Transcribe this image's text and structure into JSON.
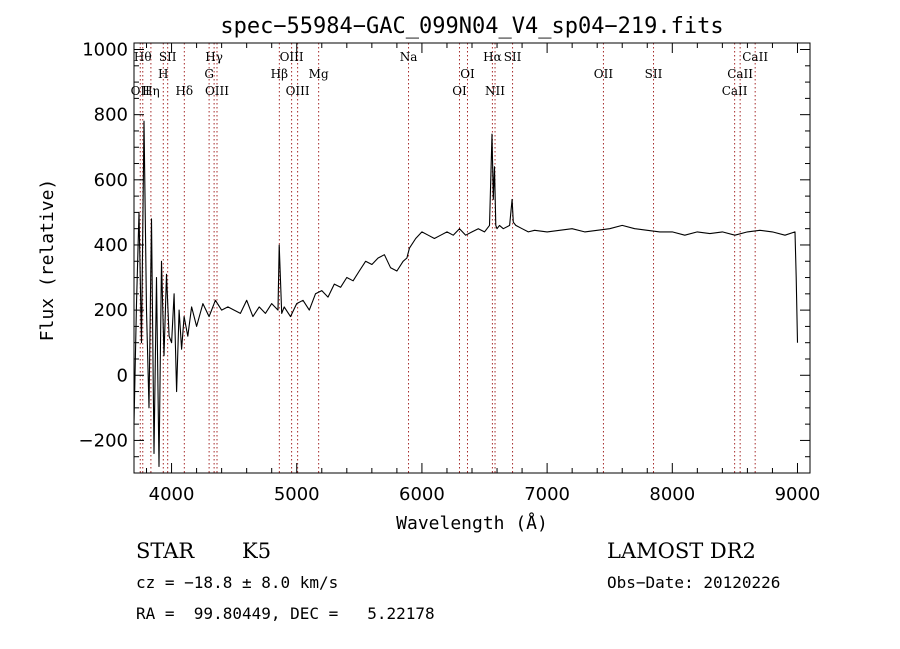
{
  "chart_data": {
    "type": "line",
    "title": "spec−55984−GAC_099N04_V4_sp04−219.fits",
    "xlabel": "Wavelength (Å)",
    "ylabel": "Flux (relative)",
    "xlim": [
      3700,
      9100
    ],
    "ylim": [
      -300,
      1020
    ],
    "xticks": [
      4000,
      5000,
      6000,
      7000,
      8000,
      9000
    ],
    "yticks": [
      -200,
      0,
      200,
      400,
      600,
      800,
      1000
    ],
    "ytick_labels": [
      "−200",
      "0",
      "200",
      "400",
      "600",
      "800",
      "1000"
    ],
    "grid": false,
    "series": [
      {
        "x": [
          3700,
          3720,
          3740,
          3760,
          3780,
          3800,
          3820,
          3840,
          3860,
          3880,
          3900,
          3920,
          3940,
          3960,
          3980,
          4000,
          4020,
          4040,
          4060,
          4080,
          4100,
          4130,
          4160,
          4200,
          4250,
          4300,
          4350,
          4400,
          4450,
          4500,
          4550,
          4600,
          4650,
          4700,
          4750,
          4800,
          4850,
          4860,
          4880,
          4900,
          4950,
          5000,
          5050,
          5100,
          5150,
          5200,
          5250,
          5300,
          5350,
          5400,
          5450,
          5500,
          5550,
          5600,
          5650,
          5700,
          5750,
          5800,
          5850,
          5880,
          5900,
          5950,
          6000,
          6050,
          6100,
          6150,
          6200,
          6250,
          6300,
          6350,
          6400,
          6450,
          6500,
          6540,
          6560,
          6570,
          6580,
          6590,
          6600,
          6620,
          6650,
          6700,
          6720,
          6730,
          6750,
          6800,
          6850,
          6900,
          7000,
          7100,
          7200,
          7300,
          7400,
          7500,
          7600,
          7700,
          7800,
          7900,
          8000,
          8100,
          8200,
          8300,
          8400,
          8500,
          8600,
          8700,
          8800,
          8900,
          8980,
          8990,
          9000
        ],
        "y": [
          -150,
          220,
          500,
          100,
          780,
          200,
          -100,
          480,
          -240,
          300,
          -280,
          350,
          60,
          310,
          120,
          100,
          250,
          -50,
          200,
          80,
          180,
          120,
          210,
          150,
          220,
          180,
          230,
          200,
          210,
          200,
          190,
          230,
          180,
          210,
          190,
          220,
          200,
          400,
          190,
          210,
          180,
          220,
          230,
          200,
          250,
          260,
          240,
          280,
          270,
          300,
          290,
          320,
          350,
          340,
          360,
          370,
          330,
          320,
          350,
          360,
          390,
          420,
          440,
          430,
          420,
          430,
          440,
          430,
          450,
          430,
          440,
          450,
          440,
          460,
          740,
          540,
          640,
          460,
          450,
          460,
          450,
          460,
          540,
          470,
          460,
          450,
          440,
          445,
          440,
          445,
          450,
          440,
          445,
          450,
          460,
          450,
          445,
          440,
          440,
          430,
          440,
          435,
          440,
          430,
          440,
          445,
          440,
          430,
          440,
          300,
          100
        ]
      }
    ],
    "lines": [
      {
        "wave": 3750,
        "label": "OII",
        "row": 3
      },
      {
        "wave": 3770,
        "label": "Hθ",
        "row": 0
      },
      {
        "wave": 3835,
        "label": "Hη",
        "row": 3
      },
      {
        "wave": 3934,
        "label": "H",
        "row": 1
      },
      {
        "wave": 3969,
        "label": "SII",
        "row": 0
      },
      {
        "wave": 4102,
        "label": "Hδ",
        "row": 3
      },
      {
        "wave": 4300,
        "label": "G",
        "row": 1
      },
      {
        "wave": 4340,
        "label": "Hγ",
        "row": 0
      },
      {
        "wave": 4363,
        "label": "OIII",
        "row": 3
      },
      {
        "wave": 4861,
        "label": "Hβ",
        "row": 1
      },
      {
        "wave": 4959,
        "label": "OIII",
        "row": 0
      },
      {
        "wave": 5007,
        "label": "OIII",
        "row": 3
      },
      {
        "wave": 5175,
        "label": "Mg",
        "row": 1
      },
      {
        "wave": 5893,
        "label": "Na",
        "row": 0
      },
      {
        "wave": 6300,
        "label": "OI",
        "row": 3
      },
      {
        "wave": 6364,
        "label": "OI",
        "row": 1
      },
      {
        "wave": 6563,
        "label": "Hα",
        "row": 0
      },
      {
        "wave": 6584,
        "label": "NII",
        "row": 3
      },
      {
        "wave": 6724,
        "label": "SII",
        "row": 0
      },
      {
        "wave": 7450,
        "label": "OII",
        "row": 1
      },
      {
        "wave": 7850,
        "label": "SII",
        "row": 1
      },
      {
        "wave": 8498,
        "label": "CaII",
        "row": 3
      },
      {
        "wave": 8542,
        "label": "CaII",
        "row": 1
      },
      {
        "wave": 8662,
        "label": "CaII",
        "row": 0
      }
    ]
  },
  "info": {
    "object_class": "STAR",
    "subclass": "K5",
    "survey": "LAMOST DR2",
    "redshift_line": "cz = −18.8 ± 8.0 km/s",
    "obs_date_line": "Obs−Date: 20120226",
    "coords_line": "RA =  99.80449, DEC =   5.22178"
  },
  "colors": {
    "spectrum": "#000000",
    "marker_lines": "#a52a2a",
    "frame": "#000000"
  }
}
